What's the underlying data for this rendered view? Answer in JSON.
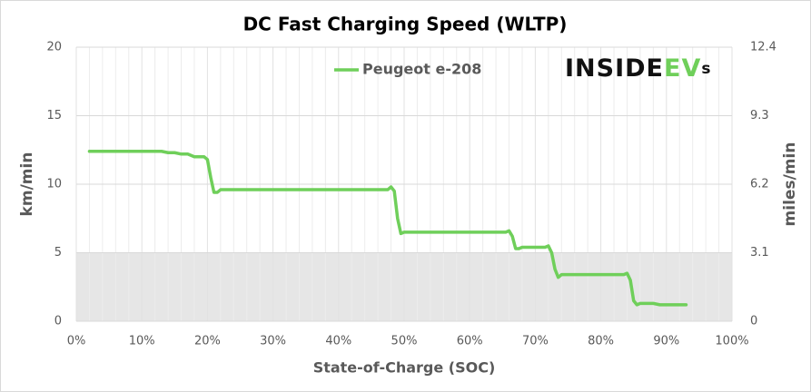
{
  "chart_data": {
    "type": "line",
    "title": "DC Fast Charging Speed (WLTP)",
    "xlabel": "State-of-Charge  (SOC)",
    "ylabel": "km/min",
    "y2label": "miles/min",
    "logo": [
      "INSIDE",
      "EV",
      "s"
    ],
    "legend": "top",
    "grid": true,
    "shaded_range": [
      0,
      5
    ],
    "xlim": [
      0,
      100
    ],
    "xticks": [
      {
        "value": 0,
        "label": "0%"
      },
      {
        "value": 10,
        "label": "10%"
      },
      {
        "value": 20,
        "label": "20%"
      },
      {
        "value": 30,
        "label": "30%"
      },
      {
        "value": 40,
        "label": "40%"
      },
      {
        "value": 50,
        "label": "50%"
      },
      {
        "value": 60,
        "label": "60%"
      },
      {
        "value": 70,
        "label": "70%"
      },
      {
        "value": 80,
        "label": "80%"
      },
      {
        "value": 90,
        "label": "90%"
      },
      {
        "value": 100,
        "label": "100%"
      }
    ],
    "ylim": [
      0,
      20
    ],
    "yticks": [
      0,
      5,
      10,
      15,
      20
    ],
    "y2lim": [
      0,
      12.4
    ],
    "y2ticks": [
      0,
      3.1,
      6.2,
      9.3,
      12.4
    ],
    "x": [
      2,
      13,
      14,
      15,
      16,
      17,
      18,
      19.5,
      20,
      20.5,
      21,
      21.5,
      22,
      30,
      40,
      47.5,
      48,
      48.5,
      49,
      49.5,
      50,
      60,
      65.5,
      66,
      66.5,
      67,
      67.5,
      68,
      71.5,
      72,
      72.5,
      73,
      73.5,
      74,
      80,
      83.5,
      84,
      84.5,
      85,
      85.5,
      86,
      88,
      89,
      93
    ],
    "series": [
      {
        "name": "Peugeot e-208",
        "color": "#6fcf5a",
        "values": [
          12.4,
          12.4,
          12.3,
          12.3,
          12.2,
          12.2,
          12.0,
          12.0,
          11.8,
          10.5,
          9.4,
          9.4,
          9.6,
          9.6,
          9.6,
          9.6,
          9.8,
          9.5,
          7.5,
          6.4,
          6.5,
          6.5,
          6.5,
          6.6,
          6.2,
          5.3,
          5.3,
          5.4,
          5.4,
          5.5,
          5.0,
          3.8,
          3.2,
          3.4,
          3.4,
          3.4,
          3.5,
          3.0,
          1.5,
          1.2,
          1.3,
          1.3,
          1.2,
          1.2
        ]
      }
    ]
  }
}
